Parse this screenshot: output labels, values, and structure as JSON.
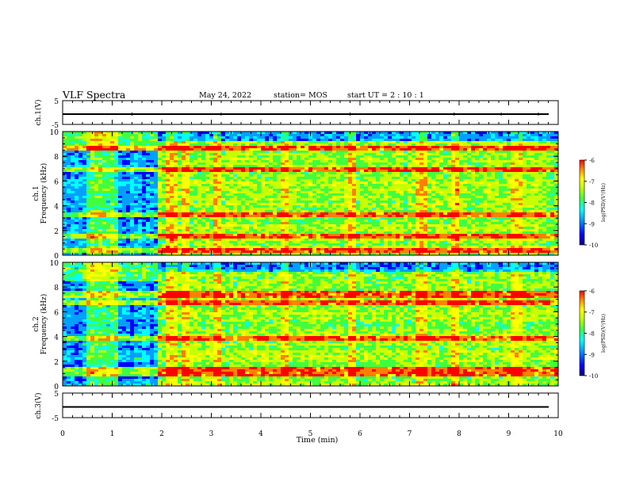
{
  "header": {
    "title": "VLF Spectra",
    "date": "May 24, 2022",
    "station": "station= MOS",
    "start": "start  UT =   2  : 10 : 1"
  },
  "chart_data": [
    {
      "type": "line",
      "panel": "ch1-waveform",
      "ylabel": "ch.1(V)",
      "ylim": [
        -5,
        5
      ],
      "yticks": [
        "5",
        "-5"
      ],
      "x": [
        0,
        10
      ],
      "values": [
        0,
        0
      ],
      "spikes_min": [
        1.4,
        3.2,
        5.8,
        7.9,
        8.85,
        9.6
      ]
    },
    {
      "type": "heatmap",
      "panel": "ch1-spectrogram",
      "ylabel": "Frequency (kHz)",
      "channel_label": "ch.1",
      "ylim": [
        0,
        10
      ],
      "yticks": [
        "0",
        "2",
        "4",
        "6",
        "8",
        "10"
      ],
      "xlim": [
        0,
        10
      ],
      "quiet_until_min": 1.9,
      "strong_bands_khz": [
        0.4,
        1.5,
        3.3,
        7.0,
        8.6
      ],
      "bright_columns_min": [
        0.6,
        0.85,
        1.05,
        2.2,
        2.45,
        3.1,
        4.5,
        5.85,
        7.25,
        7.95,
        9.15
      ],
      "colorbar": {
        "min": -10,
        "max": -6,
        "ticks": [
          "-6",
          "-7",
          "-8",
          "-9",
          "-10"
        ],
        "label": "log(PSD)(V²/Hz)"
      }
    },
    {
      "type": "heatmap",
      "panel": "ch2-spectrogram",
      "ylabel": "Frequency (kHz)",
      "channel_label": "ch.2",
      "ylim": [
        0,
        10
      ],
      "yticks": [
        "0",
        "2",
        "4",
        "6",
        "8",
        "10"
      ],
      "xlim": [
        0,
        10
      ],
      "quiet_until_min": 1.9,
      "strong_bands_khz": [
        0.9,
        1.3,
        3.9,
        6.8,
        7.4
      ],
      "bright_columns_min": [
        0.6,
        0.85,
        1.05,
        2.2,
        2.45,
        3.1,
        4.5,
        5.85,
        7.25,
        7.95,
        9.15
      ],
      "colorbar": {
        "min": -10,
        "max": -6,
        "ticks": [
          "-6",
          "-7",
          "-8",
          "-9",
          "-10"
        ],
        "label": "log(PSD)(V²/Hz)"
      }
    },
    {
      "type": "line",
      "panel": "ch3-waveform",
      "ylabel": "ch.3(V)",
      "ylim": [
        -5,
        5
      ],
      "yticks": [
        "5",
        "-5"
      ],
      "x": [
        0,
        10
      ],
      "values": [
        0,
        0
      ],
      "xlabel": "Time (min)",
      "xticks": [
        "0",
        "1",
        "2",
        "3",
        "4",
        "5",
        "6",
        "7",
        "8",
        "9",
        "10"
      ]
    }
  ],
  "colors": {
    "colormap": [
      "#000080",
      "#0000ff",
      "#00a0ff",
      "#00ffff",
      "#40ff40",
      "#c8ff00",
      "#ffff00",
      "#ff8000",
      "#ff0000"
    ],
    "axis": "#000000"
  }
}
